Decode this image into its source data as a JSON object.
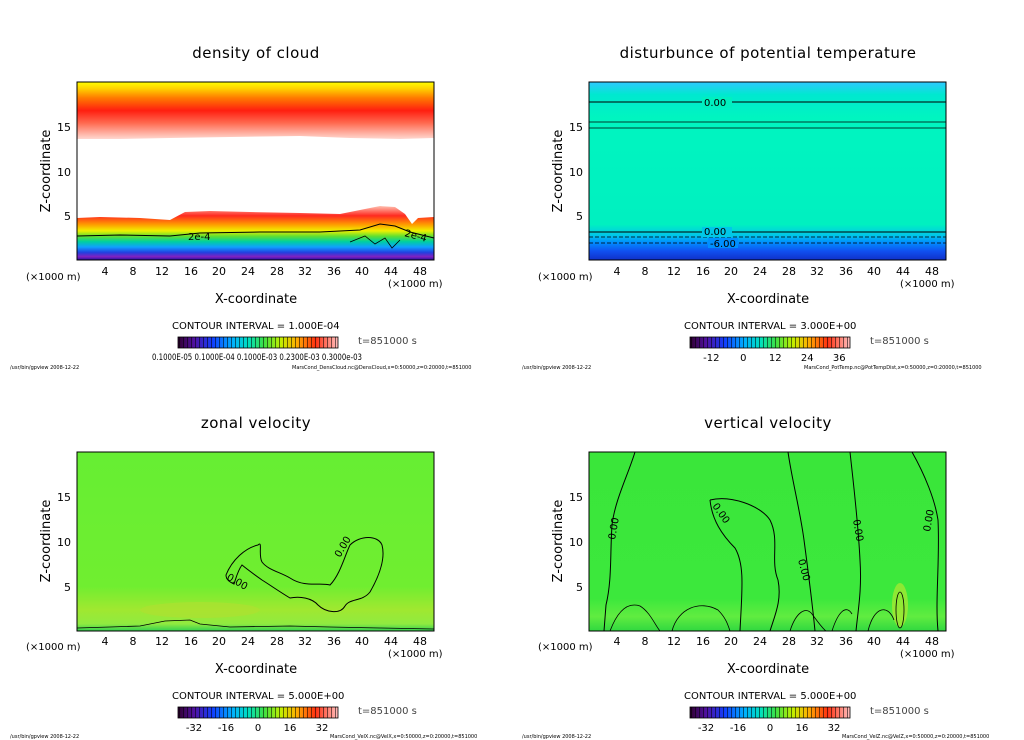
{
  "chart_data": [
    {
      "type": "heatmap",
      "title": "density of cloud",
      "xlabel": "X-coordinate",
      "ylabel": "Z-coordinate",
      "x_unit": "(×1000 m)",
      "x_unit_right": "(×1000 m)",
      "y_unit": "(×1000 m)",
      "xlim": [
        0,
        50
      ],
      "ylim": [
        0,
        20
      ],
      "x_ticks": [
        4,
        8,
        12,
        16,
        20,
        24,
        28,
        32,
        36,
        40,
        44,
        48
      ],
      "y_ticks": [
        5,
        10,
        15
      ],
      "contour_labels": [
        "2e-4",
        "2e-4"
      ],
      "contour_interval": "CONTOUR INTERVAL = 1.000E-04",
      "time": "t=851000 s",
      "colorbar_labels": [
        "0.1000E-05",
        "0.1000E-04",
        "0.1000E-03",
        "0.2300E-03",
        "0.3000E-03"
      ],
      "colorbar_text": "0.1000E-05 0.1000E-04 0.1000E-03 0.2300E-03 0.3000e-03",
      "footer_left": "/usr/bin/gpview  2008-12-22",
      "footer_right": "MarsCond_DensCloud.nc@DensCloud,x=0:50000,z=0:20000,t=851000"
    },
    {
      "type": "heatmap",
      "title": "disturbunce of potential temperature",
      "xlabel": "X-coordinate",
      "ylabel": "Z-coordinate",
      "x_unit": "(×1000 m)",
      "x_unit_right": "(×1000 m)",
      "xlim": [
        0,
        50
      ],
      "ylim": [
        0,
        20
      ],
      "x_ticks": [
        4,
        8,
        12,
        16,
        20,
        24,
        28,
        32,
        36,
        40,
        44,
        48
      ],
      "y_ticks": [
        5,
        10,
        15
      ],
      "contour_labels": [
        "0.00",
        "0.00",
        "-6.00"
      ],
      "contour_interval": "CONTOUR INTERVAL = 3.000E+00",
      "time": "t=851000 s",
      "colorbar_labels": [
        "-12",
        "0",
        "12",
        "24",
        "36"
      ],
      "colorbar_values": [
        -12,
        0,
        12,
        24,
        36
      ],
      "colorbar_range": [
        -20,
        40
      ],
      "footer_left": "/usr/bin/gpview  2008-12-22",
      "footer_right": "MarsCond_PotTemp.nc@PotTempDist,x=0:50000,z=0:20000,t=851000"
    },
    {
      "type": "heatmap",
      "title": "zonal velocity",
      "xlabel": "X-coordinate",
      "ylabel": "Z-coordinate",
      "x_unit": "(×1000 m)",
      "x_unit_right": "(×1000 m)",
      "xlim": [
        0,
        50
      ],
      "ylim": [
        0,
        20
      ],
      "x_ticks": [
        4,
        8,
        12,
        16,
        20,
        24,
        28,
        32,
        36,
        40,
        44,
        48
      ],
      "y_ticks": [
        5,
        10,
        15
      ],
      "contour_labels": [
        "0.00",
        "0.00"
      ],
      "contour_interval": "CONTOUR INTERVAL = 5.000E+00",
      "time": "t=851000 s",
      "colorbar_labels": [
        "-32",
        "-16",
        "0",
        "16",
        "32"
      ],
      "colorbar_values": [
        -32,
        -16,
        0,
        16,
        32
      ],
      "colorbar_range": [
        -40,
        40
      ],
      "footer_left": "/usr/bin/gpview  2008-12-22",
      "footer_right": "MarsCond_VelX.nc@VelX,x=0:50000,z=0:20000,t=851000"
    },
    {
      "type": "heatmap",
      "title": "vertical velocity",
      "xlabel": "X-coordinate",
      "ylabel": "Z-coordinate",
      "x_unit": "(×1000 m)",
      "x_unit_right": "(×1000 m)",
      "xlim": [
        0,
        50
      ],
      "ylim": [
        0,
        20
      ],
      "x_ticks": [
        4,
        8,
        12,
        16,
        20,
        24,
        28,
        32,
        36,
        40,
        44,
        48
      ],
      "y_ticks": [
        5,
        10,
        15
      ],
      "contour_labels": [
        "0.00",
        "0.00",
        "0.00",
        "0.00",
        "0.00"
      ],
      "contour_interval": "CONTOUR INTERVAL = 5.000E+00",
      "time": "t=851000 s",
      "colorbar_labels": [
        "-32",
        "-16",
        "0",
        "16",
        "32"
      ],
      "colorbar_values": [
        -32,
        -16,
        0,
        16,
        32
      ],
      "colorbar_range": [
        -40,
        40
      ],
      "footer_left": "/usr/bin/gpview  2008-12-22",
      "footer_right": "MarsCond_VelZ.nc@VelZ,x=0:50000,z=0:20000,t=851000"
    }
  ]
}
